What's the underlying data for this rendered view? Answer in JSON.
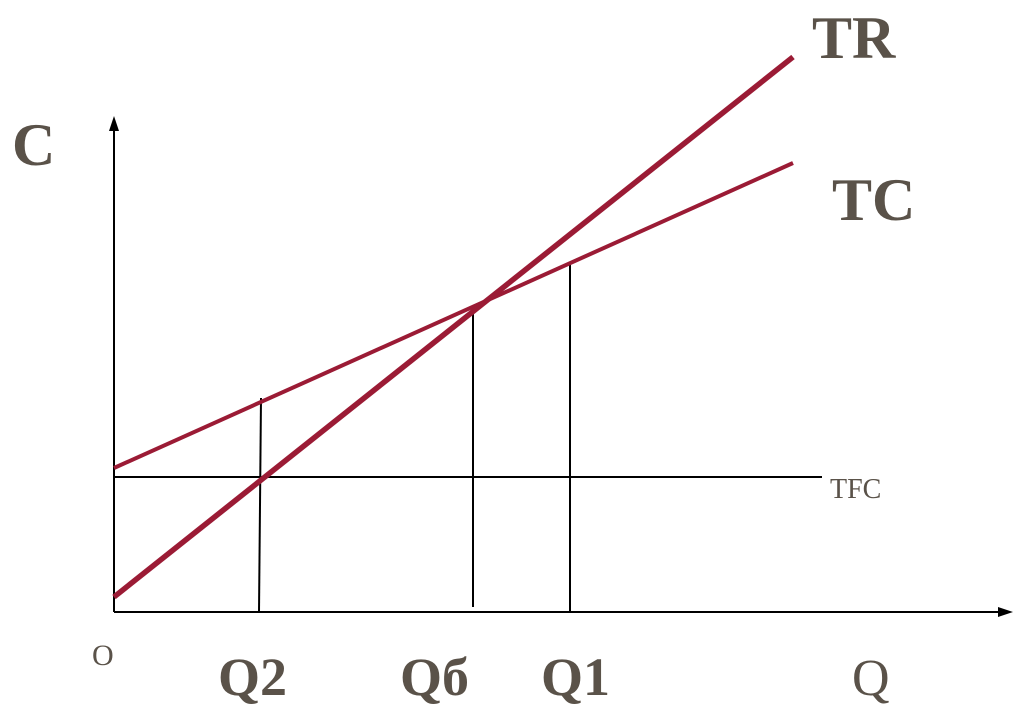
{
  "labels": {
    "y_axis": "C",
    "x_axis": "Q",
    "origin": "O",
    "tr": "TR",
    "tc": "TC",
    "tfc": "TFC",
    "q2": "Q2",
    "q_breakeven": "Qб",
    "q1": "Q1"
  },
  "colors": {
    "curve": "#9b1b35",
    "axis": "#000000",
    "text": "#5a5249"
  }
}
